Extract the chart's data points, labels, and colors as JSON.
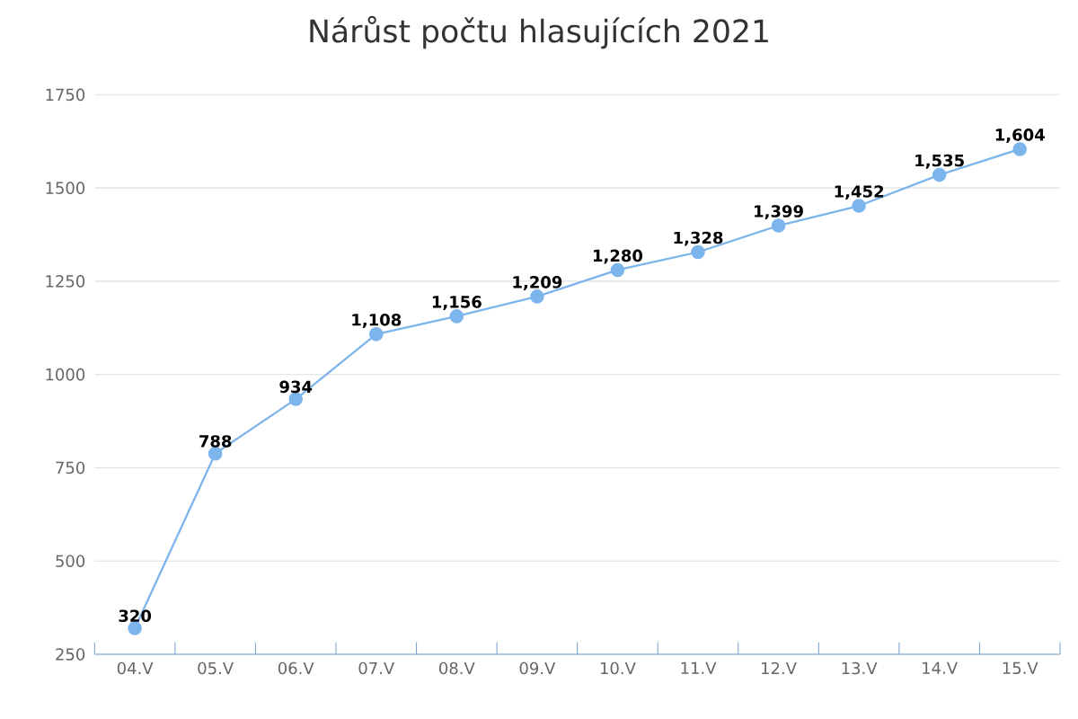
{
  "chart_data": {
    "type": "line",
    "title": "Nárůst počtu hlasujících 2021",
    "categories": [
      "04.V",
      "05.V",
      "06.V",
      "07.V",
      "08.V",
      "09.V",
      "10.V",
      "11.V",
      "12.V",
      "13.V",
      "14.V",
      "15.V"
    ],
    "values": [
      320,
      788,
      934,
      1108,
      1156,
      1209,
      1280,
      1328,
      1399,
      1452,
      1535,
      1604
    ],
    "value_labels": [
      "320",
      "788",
      "934",
      "1,108",
      "1,156",
      "1,209",
      "1,280",
      "1,328",
      "1,399",
      "1,452",
      "1,535",
      "1,604"
    ],
    "color": "#7cb5ec",
    "marker": "circle",
    "line_style": "solid",
    "ylim": [
      250,
      1750
    ],
    "yticks": [
      250,
      500,
      750,
      1000,
      1250,
      1500,
      1750
    ],
    "grid": "y"
  }
}
